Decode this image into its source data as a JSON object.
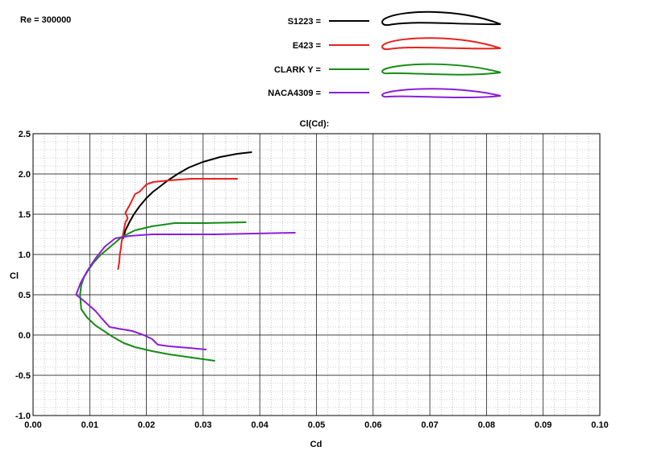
{
  "chart_data": {
    "type": "line",
    "title": "Cl(Cd):",
    "annotation": "Re = 300000",
    "xlabel": "Cd",
    "ylabel": "Cl",
    "xlim": [
      0.0,
      0.1
    ],
    "ylim": [
      -1.0,
      2.5
    ],
    "x_ticks": [
      "0.00",
      "0.01",
      "0.02",
      "0.03",
      "0.04",
      "0.05",
      "0.06",
      "0.07",
      "0.08",
      "0.09",
      "0.10"
    ],
    "y_ticks": [
      "-1.0",
      "-0.5",
      "0.0",
      "0.5",
      "1.0",
      "1.5",
      "2.0",
      "2.5"
    ],
    "grid": true,
    "minor_grid": true,
    "legend_position": "top-center",
    "series": [
      {
        "name": "S1223 =",
        "color": "#000000",
        "x": [
          0.0159,
          0.0163,
          0.017,
          0.0178,
          0.0188,
          0.02,
          0.0212,
          0.0225,
          0.0238,
          0.0255,
          0.0275,
          0.03,
          0.033,
          0.036,
          0.0385
        ],
        "y": [
          1.2,
          1.3,
          1.4,
          1.5,
          1.6,
          1.7,
          1.78,
          1.85,
          1.92,
          2.0,
          2.08,
          2.15,
          2.21,
          2.25,
          2.27
        ]
      },
      {
        "name": "E423 =",
        "color": "#e8201e",
        "x": [
          0.015,
          0.0152,
          0.0153,
          0.0155,
          0.0156,
          0.0158,
          0.016,
          0.0163,
          0.0167,
          0.0163,
          0.0171,
          0.018,
          0.0188,
          0.02,
          0.0212,
          0.024,
          0.028,
          0.032,
          0.036
        ],
        "y": [
          0.82,
          0.9,
          1.0,
          1.08,
          1.15,
          1.22,
          1.3,
          1.4,
          1.45,
          1.52,
          1.62,
          1.75,
          1.78,
          1.87,
          1.9,
          1.92,
          1.94,
          1.94,
          1.94
        ]
      },
      {
        "name": "CLARK Y =",
        "color": "#168c16",
        "x": [
          0.032,
          0.03,
          0.027,
          0.024,
          0.021,
          0.018,
          0.016,
          0.014,
          0.0125,
          0.011,
          0.0095,
          0.0085,
          0.0083,
          0.0085,
          0.009,
          0.0097,
          0.0107,
          0.012,
          0.0137,
          0.0157,
          0.018,
          0.021,
          0.025,
          0.03,
          0.0375
        ],
        "y": [
          -0.32,
          -0.3,
          -0.27,
          -0.24,
          -0.2,
          -0.15,
          -0.1,
          -0.02,
          0.05,
          0.12,
          0.22,
          0.32,
          0.5,
          0.62,
          0.72,
          0.8,
          0.9,
          1.0,
          1.1,
          1.22,
          1.3,
          1.35,
          1.39,
          1.39,
          1.4
        ]
      },
      {
        "name": "NACA4309 =",
        "color": "#8a1fd6",
        "x": [
          0.0305,
          0.0275,
          0.024,
          0.022,
          0.021,
          0.0195,
          0.0175,
          0.015,
          0.0135,
          0.0122,
          0.011,
          0.0097,
          0.0085,
          0.0076,
          0.0084,
          0.0096,
          0.011,
          0.0127,
          0.0145,
          0.017,
          0.021,
          0.026,
          0.032,
          0.039,
          0.0462
        ],
        "y": [
          -0.18,
          -0.16,
          -0.14,
          -0.12,
          -0.05,
          0.0,
          0.05,
          0.08,
          0.1,
          0.2,
          0.3,
          0.38,
          0.45,
          0.5,
          0.65,
          0.8,
          0.95,
          1.1,
          1.2,
          1.23,
          1.25,
          1.25,
          1.25,
          1.26,
          1.27
        ]
      }
    ]
  }
}
